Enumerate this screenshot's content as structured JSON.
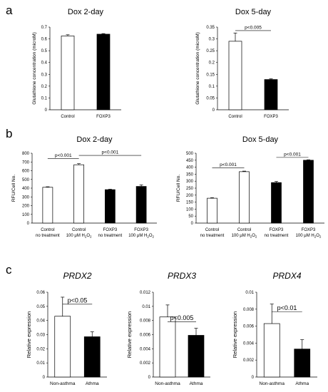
{
  "panels": [
    {
      "letter": "a"
    },
    {
      "letter": "b"
    },
    {
      "letter": "c"
    }
  ],
  "chart_data": [
    {
      "type": "bar",
      "title": "Dox 2-day",
      "ylabel": "Glutathione concentration (microM)",
      "categories": [
        [
          "Control"
        ],
        [
          "FOXP3"
        ]
      ],
      "values": [
        0.625,
        0.64
      ],
      "errors": [
        0.01,
        0.005
      ],
      "fills": [
        "#ffffff",
        "#000000"
      ],
      "ylim": [
        0,
        0.7
      ],
      "yticks": [
        0,
        0.1,
        0.2,
        0.3,
        0.4,
        0.5,
        0.6,
        0.7
      ],
      "yticklabels": [
        "0",
        "0.1",
        "0.2",
        "0.3",
        "0.4",
        "0.5",
        "0.6",
        "0.7"
      ],
      "annotations": []
    },
    {
      "type": "bar",
      "title": "Dox 5-day",
      "ylabel": "Glutathione concentration (microM)",
      "categories": [
        [
          "Control"
        ],
        [
          "FOXP3"
        ]
      ],
      "values": [
        0.29,
        0.128
      ],
      "errors": [
        0.035,
        0.003
      ],
      "fills": [
        "#ffffff",
        "#000000"
      ],
      "ylim": [
        0,
        0.35
      ],
      "yticks": [
        0,
        0.05,
        0.1,
        0.15,
        0.2,
        0.25,
        0.3,
        0.35
      ],
      "yticklabels": [
        "0",
        "0.05",
        "0.1",
        "0.15",
        "0.2",
        "0.25",
        "0.3",
        "0.35"
      ],
      "annotations": [
        {
          "text": "p<0.005",
          "from": 0,
          "to": 1,
          "y": 0.335
        }
      ]
    },
    {
      "type": "bar",
      "title": "Dox 2-day",
      "ylabel": "RFU/Cell No.",
      "categories": [
        [
          "Control",
          "no treatment"
        ],
        [
          "Control",
          "100 μM H₂O₂"
        ],
        [
          "FOXP3",
          "no treatment"
        ],
        [
          "FOXP3",
          "100 μM H₂O₂"
        ]
      ],
      "values": [
        410,
        668,
        383,
        420
      ],
      "errors": [
        6,
        12,
        5,
        18
      ],
      "fills": [
        "#ffffff",
        "#ffffff",
        "#000000",
        "#000000"
      ],
      "ylim": [
        0,
        800
      ],
      "yticks": [
        0,
        100,
        200,
        300,
        400,
        500,
        600,
        700,
        800
      ],
      "yticklabels": [
        "0",
        "100",
        "200",
        "300",
        "400",
        "500",
        "600",
        "700",
        "800"
      ],
      "annotations": [
        {
          "text": "p<0.001",
          "from": 0,
          "to": 1,
          "y": 740
        },
        {
          "text": "p<0.001",
          "from": 1,
          "to": 3,
          "y": 775
        }
      ]
    },
    {
      "type": "bar",
      "title": "Dox 5-day",
      "ylabel": "RFU/Cell No.",
      "categories": [
        [
          "Control",
          "no treatment"
        ],
        [
          "Control",
          "100 μM H₂O₂"
        ],
        [
          "FOXP3",
          "no treatment"
        ],
        [
          "FOXP3",
          "100 μM H₂O₂"
        ]
      ],
      "values": [
        178,
        368,
        290,
        450
      ],
      "errors": [
        4,
        4,
        8,
        3
      ],
      "fills": [
        "#ffffff",
        "#ffffff",
        "#000000",
        "#000000"
      ],
      "ylim": [
        0,
        500
      ],
      "yticks": [
        0,
        50,
        100,
        150,
        200,
        250,
        300,
        350,
        400,
        450,
        500
      ],
      "yticklabels": [
        "0",
        "50",
        "100",
        "150",
        "200",
        "250",
        "300",
        "350",
        "400",
        "450",
        "500"
      ],
      "annotations": [
        {
          "text": "p<0.001",
          "from": 0,
          "to": 1,
          "y": 395
        },
        {
          "text": "p<0.001",
          "from": 2,
          "to": 3,
          "y": 470
        }
      ]
    },
    {
      "type": "bar",
      "title": "PRDX2",
      "ylabel": "Relative expression",
      "categories": [
        [
          "Non-asthma"
        ],
        [
          "Athma"
        ]
      ],
      "values": [
        0.043,
        0.0285
      ],
      "errors": [
        0.0135,
        0.0035
      ],
      "fills": [
        "#ffffff",
        "#000000"
      ],
      "ylim": [
        0,
        0.06
      ],
      "yticks": [
        0,
        0.01,
        0.02,
        0.03,
        0.04,
        0.05,
        0.06
      ],
      "yticklabels": [
        "0",
        "0.01",
        "0.02",
        "0.03",
        "0.04",
        "0.05",
        "0.06"
      ],
      "annotations": [
        {
          "text": "p<0.05",
          "from": 0,
          "to": 1,
          "y": 0.0515
        }
      ]
    },
    {
      "type": "bar",
      "title": "PRDX3",
      "ylabel": "Relative expression",
      "categories": [
        [
          "Non-asthma"
        ],
        [
          "Athma"
        ]
      ],
      "values": [
        0.0085,
        0.0059
      ],
      "errors": [
        0.0017,
        0.001
      ],
      "fills": [
        "#ffffff",
        "#000000"
      ],
      "ylim": [
        0,
        0.012
      ],
      "yticks": [
        0,
        0.002,
        0.004,
        0.006,
        0.008,
        0.01,
        0.012
      ],
      "yticklabels": [
        "0",
        "0.002",
        "0.004",
        "0.006",
        "0.008",
        "0.01",
        "0.012"
      ],
      "annotations": [
        {
          "text": "p<0.005",
          "from": 0,
          "to": 1,
          "y": 0.0078
        }
      ]
    },
    {
      "type": "bar",
      "title": "PRDX4",
      "ylabel": "Relative expression",
      "categories": [
        [
          "Non-asthma"
        ],
        [
          "Athma"
        ]
      ],
      "values": [
        0.0063,
        0.0033
      ],
      "errors": [
        0.0023,
        0.0011
      ],
      "fills": [
        "#ffffff",
        "#000000"
      ],
      "ylim": [
        0,
        0.01
      ],
      "yticks": [
        0,
        0.002,
        0.004,
        0.006,
        0.008,
        0.01
      ],
      "yticklabels": [
        "0",
        "0.002",
        "0.004",
        "0.006",
        "0.008",
        "0.01"
      ],
      "annotations": [
        {
          "text": "p<0.01",
          "from": 0,
          "to": 1,
          "y": 0.0077
        }
      ]
    }
  ]
}
